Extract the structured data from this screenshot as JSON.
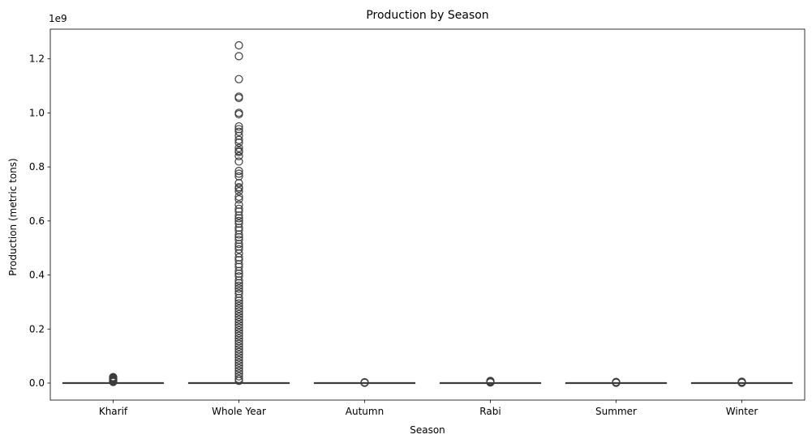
{
  "chart_data": {
    "type": "box",
    "title": "Production by Season",
    "xlabel": "Season",
    "ylabel": "Production (metric tons)",
    "y_offset_label": "1e9",
    "ylim": [
      -0.063,
      1.31
    ],
    "yticks": [
      0.0,
      0.2,
      0.4,
      0.6,
      0.8,
      1.0,
      1.2
    ],
    "ytick_labels": [
      "0.0",
      "0.2",
      "0.4",
      "0.6",
      "0.8",
      "1.0",
      "1.2"
    ],
    "categories": [
      "Kharif",
      "Whole Year",
      "Autumn",
      "Rabi",
      "Summer",
      "Winter"
    ],
    "grid": false,
    "color_box": "#ffffff",
    "color_edge": "#3d3d3d",
    "series": [
      {
        "category": "Kharif",
        "median": 0.0,
        "q1": 0.0,
        "q3": 0.0,
        "whisker_low": 0.0,
        "whisker_high": 0.0,
        "outliers": [
          0.004,
          0.006,
          0.008,
          0.01,
          0.012,
          0.014,
          0.016,
          0.018,
          0.02,
          0.022
        ]
      },
      {
        "category": "Whole Year",
        "median": 0.0,
        "q1": 0.0,
        "q3": 0.0,
        "whisker_low": 0.0,
        "whisker_high": 0.0,
        "outliers": [
          1.25,
          1.21,
          1.125,
          1.06,
          1.055,
          1.0,
          0.995,
          0.95,
          0.94,
          0.93,
          0.915,
          0.9,
          0.89,
          0.87,
          0.86,
          0.855,
          0.84,
          0.82,
          0.785,
          0.775,
          0.765,
          0.74,
          0.725,
          0.72,
          0.71,
          0.69,
          0.68,
          0.66,
          0.645,
          0.635,
          0.62,
          0.61,
          0.6,
          0.59,
          0.575,
          0.565,
          0.55,
          0.54,
          0.53,
          0.515,
          0.505,
          0.495,
          0.48,
          0.465,
          0.455,
          0.44,
          0.43,
          0.415,
          0.405,
          0.395,
          0.38,
          0.37,
          0.36,
          0.35,
          0.34,
          0.33,
          0.315,
          0.305,
          0.295,
          0.285,
          0.275,
          0.265,
          0.255,
          0.245,
          0.235,
          0.225,
          0.215,
          0.205,
          0.195,
          0.185,
          0.175,
          0.165,
          0.155,
          0.145,
          0.135,
          0.125,
          0.115,
          0.105,
          0.095,
          0.085,
          0.075,
          0.065,
          0.055,
          0.045,
          0.035,
          0.025,
          0.015,
          0.008
        ]
      },
      {
        "category": "Autumn",
        "median": 0.0,
        "q1": 0.0,
        "q3": 0.0,
        "whisker_low": 0.0,
        "whisker_high": 0.0,
        "outliers": [
          0.001,
          0.002,
          0.003
        ]
      },
      {
        "category": "Rabi",
        "median": 0.0,
        "q1": 0.0,
        "q3": 0.0,
        "whisker_low": 0.0,
        "whisker_high": 0.0,
        "outliers": [
          0.002,
          0.004,
          0.006,
          0.008
        ]
      },
      {
        "category": "Summer",
        "median": 0.0,
        "q1": 0.0,
        "q3": 0.0,
        "whisker_low": 0.0,
        "whisker_high": 0.0,
        "outliers": [
          0.001,
          0.002,
          0.003,
          0.004
        ]
      },
      {
        "category": "Winter",
        "median": 0.0,
        "q1": 0.0,
        "q3": 0.0,
        "whisker_low": 0.0,
        "whisker_high": 0.0,
        "outliers": [
          0.001,
          0.002,
          0.003,
          0.004,
          0.005
        ]
      }
    ]
  }
}
